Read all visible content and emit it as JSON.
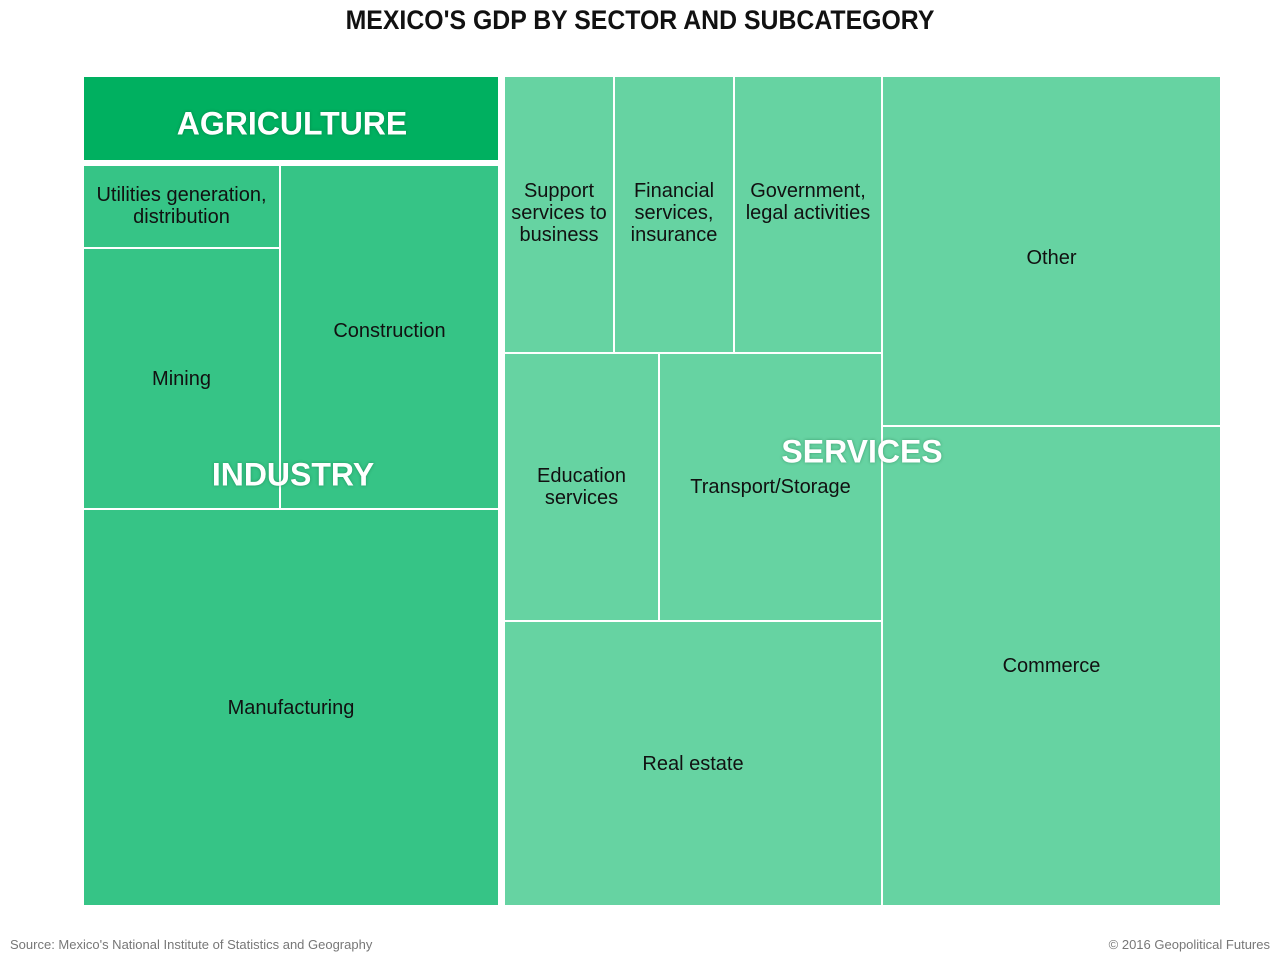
{
  "chart_data": {
    "type": "treemap",
    "title": "MEXICO'S GDP BY SECTOR AND SUBCATEGORY",
    "unit": "approximate share of GDP (%)",
    "sectors": [
      {
        "name": "AGRICULTURE",
        "color": "#00b060",
        "items": [
          {
            "label": "AGRICULTURE",
            "value": 3.7
          }
        ]
      },
      {
        "name": "INDUSTRY",
        "color": "#36c486",
        "items": [
          {
            "label": "Utilities generation,\ndistribution",
            "value": 1.7
          },
          {
            "label": "Mining",
            "value": 5.4
          },
          {
            "label": "Construction",
            "value": 8.0
          },
          {
            "label": "Manufacturing",
            "value": 17.5
          }
        ]
      },
      {
        "name": "SERVICES",
        "color": "#66d3a2",
        "items": [
          {
            "label": "Support\nservices to\nbusiness",
            "value": 3.2
          },
          {
            "label": "Financial\nservices,\ninsurance",
            "value": 3.5
          },
          {
            "label": "Government,\nlegal activities",
            "value": 4.3
          },
          {
            "label": "Other",
            "value": 12.6
          },
          {
            "label": "Education\nservices",
            "value": 4.4
          },
          {
            "label": "Transport/Storage",
            "value": 6.3
          },
          {
            "label": "Real estate",
            "value": 11.4
          },
          {
            "label": "Commerce",
            "value": 17.2
          }
        ]
      }
    ]
  },
  "footer": {
    "source": "Source: Mexico's National Institute of Statistics and Geography",
    "credit": "© 2016 Geopolitical Futures"
  }
}
